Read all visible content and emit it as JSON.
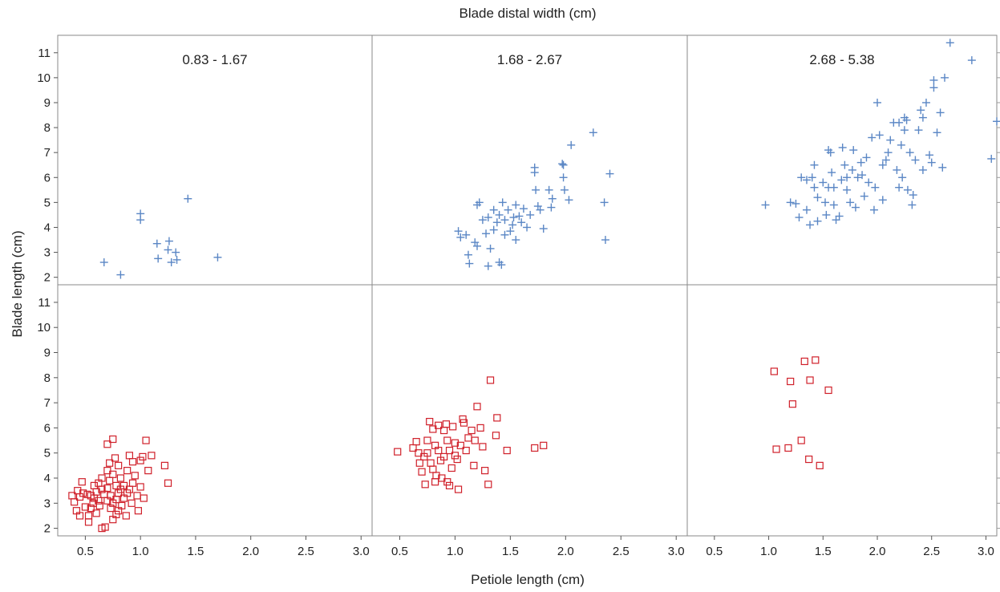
{
  "chart_data": {
    "type": "scatter",
    "title": "Blade distal width (cm)",
    "xlabel": "Petiole length (cm)",
    "ylabel": "Blade length (cm)",
    "xlim": [
      0.25,
      3.1
    ],
    "ylim": [
      1.7,
      11.7
    ],
    "x_ticks": [
      0.5,
      1.0,
      1.5,
      2.0,
      2.5,
      3.0
    ],
    "x_tick_labels": [
      "0.5",
      "1.0",
      "1.5",
      "2.0",
      "2.5",
      "3.0"
    ],
    "y_ticks": [
      2,
      3,
      4,
      5,
      6,
      7,
      8,
      9,
      10,
      11
    ],
    "y_tick_labels": [
      "2",
      "3",
      "4",
      "5",
      "6",
      "7",
      "8",
      "9",
      "10",
      "11"
    ],
    "grid": false,
    "columns": [
      "0.83 - 1.67",
      "1.68 - 2.67",
      "2.68 - 5.38"
    ],
    "series_styles": [
      {
        "marker": "plus",
        "color": "#5b87c5"
      },
      {
        "marker": "square",
        "color": "#d0202a"
      }
    ],
    "panels": [
      {
        "row": 0,
        "col": 0,
        "marker": "plus",
        "points": [
          [
            0.67,
            2.6
          ],
          [
            0.82,
            2.1
          ],
          [
            1.0,
            4.55
          ],
          [
            1.0,
            4.3
          ],
          [
            1.15,
            3.35
          ],
          [
            1.16,
            2.75
          ],
          [
            1.26,
            3.45
          ],
          [
            1.25,
            3.1
          ],
          [
            1.28,
            2.6
          ],
          [
            1.32,
            3.0
          ],
          [
            1.33,
            2.7
          ],
          [
            1.43,
            5.15
          ],
          [
            1.7,
            2.8
          ]
        ]
      },
      {
        "row": 0,
        "col": 1,
        "marker": "plus",
        "points": [
          [
            1.03,
            3.85
          ],
          [
            1.05,
            3.6
          ],
          [
            1.1,
            3.7
          ],
          [
            1.12,
            2.9
          ],
          [
            1.13,
            2.55
          ],
          [
            1.18,
            3.4
          ],
          [
            1.2,
            4.9
          ],
          [
            1.22,
            5.0
          ],
          [
            1.2,
            3.25
          ],
          [
            1.25,
            4.3
          ],
          [
            1.28,
            3.75
          ],
          [
            1.3,
            4.4
          ],
          [
            1.3,
            2.45
          ],
          [
            1.32,
            3.15
          ],
          [
            1.35,
            4.7
          ],
          [
            1.35,
            3.9
          ],
          [
            1.38,
            4.2
          ],
          [
            1.4,
            4.5
          ],
          [
            1.4,
            2.6
          ],
          [
            1.42,
            2.5
          ],
          [
            1.43,
            5.0
          ],
          [
            1.45,
            4.3
          ],
          [
            1.45,
            3.7
          ],
          [
            1.48,
            4.7
          ],
          [
            1.5,
            3.85
          ],
          [
            1.52,
            4.1
          ],
          [
            1.53,
            4.4
          ],
          [
            1.55,
            4.9
          ],
          [
            1.55,
            3.5
          ],
          [
            1.58,
            4.45
          ],
          [
            1.6,
            4.2
          ],
          [
            1.62,
            4.75
          ],
          [
            1.65,
            4.0
          ],
          [
            1.68,
            4.5
          ],
          [
            1.72,
            6.4
          ],
          [
            1.72,
            6.2
          ],
          [
            1.73,
            5.5
          ],
          [
            1.75,
            4.85
          ],
          [
            1.77,
            4.7
          ],
          [
            1.8,
            3.95
          ],
          [
            1.85,
            5.5
          ],
          [
            1.87,
            4.8
          ],
          [
            1.88,
            5.15
          ],
          [
            1.97,
            6.55
          ],
          [
            1.98,
            6.5
          ],
          [
            1.98,
            6.0
          ],
          [
            1.99,
            5.5
          ],
          [
            2.03,
            5.1
          ],
          [
            2.05,
            7.3
          ],
          [
            2.25,
            7.8
          ],
          [
            2.35,
            5.0
          ],
          [
            2.36,
            3.5
          ],
          [
            2.4,
            6.15
          ]
        ]
      },
      {
        "row": 0,
        "col": 2,
        "marker": "plus",
        "points": [
          [
            0.97,
            4.9
          ],
          [
            1.2,
            5.0
          ],
          [
            1.25,
            4.95
          ],
          [
            1.28,
            4.4
          ],
          [
            1.3,
            6.0
          ],
          [
            1.35,
            5.9
          ],
          [
            1.35,
            4.7
          ],
          [
            1.38,
            4.1
          ],
          [
            1.4,
            6.0
          ],
          [
            1.42,
            6.5
          ],
          [
            1.42,
            5.6
          ],
          [
            1.45,
            5.2
          ],
          [
            1.45,
            4.25
          ],
          [
            1.5,
            5.8
          ],
          [
            1.52,
            5.0
          ],
          [
            1.53,
            4.5
          ],
          [
            1.55,
            7.1
          ],
          [
            1.55,
            5.6
          ],
          [
            1.57,
            7.0
          ],
          [
            1.58,
            6.2
          ],
          [
            1.6,
            5.6
          ],
          [
            1.6,
            4.9
          ],
          [
            1.62,
            4.3
          ],
          [
            1.65,
            4.45
          ],
          [
            1.67,
            5.9
          ],
          [
            1.68,
            7.2
          ],
          [
            1.7,
            6.5
          ],
          [
            1.72,
            6.0
          ],
          [
            1.72,
            5.5
          ],
          [
            1.75,
            5.0
          ],
          [
            1.77,
            6.3
          ],
          [
            1.78,
            7.1
          ],
          [
            1.8,
            4.8
          ],
          [
            1.82,
            6.0
          ],
          [
            1.85,
            6.6
          ],
          [
            1.86,
            6.1
          ],
          [
            1.88,
            5.25
          ],
          [
            1.9,
            6.8
          ],
          [
            1.92,
            5.8
          ],
          [
            1.95,
            7.6
          ],
          [
            1.97,
            4.7
          ],
          [
            1.98,
            5.6
          ],
          [
            2.0,
            9.0
          ],
          [
            2.02,
            7.7
          ],
          [
            2.05,
            6.5
          ],
          [
            2.05,
            5.1
          ],
          [
            2.08,
            6.7
          ],
          [
            2.1,
            7.0
          ],
          [
            2.12,
            7.5
          ],
          [
            2.15,
            8.2
          ],
          [
            2.18,
            6.3
          ],
          [
            2.2,
            8.2
          ],
          [
            2.2,
            5.6
          ],
          [
            2.22,
            7.3
          ],
          [
            2.23,
            6.0
          ],
          [
            2.25,
            8.4
          ],
          [
            2.25,
            7.9
          ],
          [
            2.27,
            8.3
          ],
          [
            2.28,
            5.5
          ],
          [
            2.3,
            7.0
          ],
          [
            2.32,
            4.9
          ],
          [
            2.33,
            5.3
          ],
          [
            2.35,
            6.7
          ],
          [
            2.38,
            7.9
          ],
          [
            2.4,
            8.7
          ],
          [
            2.42,
            8.4
          ],
          [
            2.42,
            6.3
          ],
          [
            2.45,
            9.0
          ],
          [
            2.48,
            6.9
          ],
          [
            2.5,
            6.6
          ],
          [
            2.52,
            9.9
          ],
          [
            2.52,
            9.6
          ],
          [
            2.55,
            7.8
          ],
          [
            2.58,
            8.6
          ],
          [
            2.6,
            6.4
          ],
          [
            2.62,
            10.0
          ],
          [
            2.67,
            11.4
          ],
          [
            2.87,
            10.7
          ],
          [
            3.05,
            6.75
          ],
          [
            3.1,
            8.25
          ]
        ]
      },
      {
        "row": 1,
        "col": 0,
        "marker": "square",
        "points": [
          [
            0.38,
            3.3
          ],
          [
            0.4,
            3.05
          ],
          [
            0.42,
            2.7
          ],
          [
            0.43,
            3.5
          ],
          [
            0.45,
            3.25
          ],
          [
            0.45,
            2.5
          ],
          [
            0.47,
            3.85
          ],
          [
            0.48,
            3.4
          ],
          [
            0.5,
            2.85
          ],
          [
            0.52,
            3.35
          ],
          [
            0.53,
            2.5
          ],
          [
            0.53,
            2.25
          ],
          [
            0.55,
            3.3
          ],
          [
            0.55,
            2.8
          ],
          [
            0.57,
            3.0
          ],
          [
            0.58,
            3.7
          ],
          [
            0.58,
            3.2
          ],
          [
            0.6,
            3.45
          ],
          [
            0.6,
            2.6
          ],
          [
            0.62,
            3.8
          ],
          [
            0.62,
            3.1
          ],
          [
            0.63,
            2.9
          ],
          [
            0.65,
            4.0
          ],
          [
            0.65,
            3.55
          ],
          [
            0.65,
            2.0
          ],
          [
            0.67,
            3.35
          ],
          [
            0.68,
            2.05
          ],
          [
            0.7,
            4.3
          ],
          [
            0.7,
            3.6
          ],
          [
            0.7,
            3.1
          ],
          [
            0.7,
            5.35
          ],
          [
            0.72,
            4.6
          ],
          [
            0.72,
            3.9
          ],
          [
            0.73,
            3.3
          ],
          [
            0.73,
            2.8
          ],
          [
            0.75,
            5.55
          ],
          [
            0.75,
            4.15
          ],
          [
            0.75,
            3.0
          ],
          [
            0.75,
            2.35
          ],
          [
            0.77,
            4.8
          ],
          [
            0.78,
            3.7
          ],
          [
            0.78,
            3.15
          ],
          [
            0.78,
            2.55
          ],
          [
            0.8,
            4.5
          ],
          [
            0.8,
            3.4
          ],
          [
            0.8,
            2.7
          ],
          [
            0.82,
            4.0
          ],
          [
            0.82,
            3.55
          ],
          [
            0.83,
            2.9
          ],
          [
            0.85,
            3.7
          ],
          [
            0.85,
            3.2
          ],
          [
            0.87,
            2.5
          ],
          [
            0.88,
            4.3
          ],
          [
            0.88,
            3.4
          ],
          [
            0.9,
            4.9
          ],
          [
            0.9,
            3.55
          ],
          [
            0.92,
            3.0
          ],
          [
            0.93,
            4.65
          ],
          [
            0.93,
            3.8
          ],
          [
            0.95,
            4.1
          ],
          [
            0.97,
            3.3
          ],
          [
            0.98,
            2.7
          ],
          [
            1.0,
            4.7
          ],
          [
            1.0,
            3.65
          ],
          [
            1.02,
            4.85
          ],
          [
            1.03,
            3.2
          ],
          [
            1.05,
            5.5
          ],
          [
            1.07,
            4.3
          ],
          [
            1.1,
            4.9
          ],
          [
            1.22,
            4.5
          ],
          [
            1.25,
            3.8
          ]
        ]
      },
      {
        "row": 1,
        "col": 1,
        "marker": "square",
        "points": [
          [
            0.48,
            5.05
          ],
          [
            0.62,
            5.2
          ],
          [
            0.65,
            5.45
          ],
          [
            0.67,
            5.0
          ],
          [
            0.68,
            4.6
          ],
          [
            0.7,
            4.25
          ],
          [
            0.72,
            4.85
          ],
          [
            0.73,
            3.75
          ],
          [
            0.75,
            5.5
          ],
          [
            0.75,
            5.0
          ],
          [
            0.77,
            6.25
          ],
          [
            0.78,
            4.6
          ],
          [
            0.8,
            5.95
          ],
          [
            0.8,
            4.35
          ],
          [
            0.82,
            5.3
          ],
          [
            0.82,
            3.85
          ],
          [
            0.83,
            4.1
          ],
          [
            0.85,
            6.1
          ],
          [
            0.85,
            5.1
          ],
          [
            0.87,
            4.7
          ],
          [
            0.88,
            4.0
          ],
          [
            0.9,
            5.9
          ],
          [
            0.9,
            4.85
          ],
          [
            0.92,
            6.15
          ],
          [
            0.93,
            5.5
          ],
          [
            0.93,
            3.85
          ],
          [
            0.95,
            5.1
          ],
          [
            0.95,
            3.7
          ],
          [
            0.97,
            4.4
          ],
          [
            0.98,
            6.05
          ],
          [
            1.0,
            5.4
          ],
          [
            1.0,
            4.9
          ],
          [
            1.02,
            4.75
          ],
          [
            1.03,
            3.55
          ],
          [
            1.05,
            5.3
          ],
          [
            1.07,
            6.35
          ],
          [
            1.08,
            6.2
          ],
          [
            1.1,
            5.1
          ],
          [
            1.12,
            5.6
          ],
          [
            1.15,
            5.9
          ],
          [
            1.17,
            4.5
          ],
          [
            1.18,
            5.5
          ],
          [
            1.2,
            6.85
          ],
          [
            1.23,
            6.0
          ],
          [
            1.25,
            5.25
          ],
          [
            1.27,
            4.3
          ],
          [
            1.3,
            3.75
          ],
          [
            1.32,
            7.9
          ],
          [
            1.37,
            5.7
          ],
          [
            1.38,
            6.4
          ],
          [
            1.47,
            5.1
          ],
          [
            1.72,
            5.2
          ],
          [
            1.8,
            5.3
          ]
        ]
      },
      {
        "row": 1,
        "col": 2,
        "marker": "square",
        "points": [
          [
            1.05,
            8.25
          ],
          [
            1.07,
            5.15
          ],
          [
            1.18,
            5.2
          ],
          [
            1.2,
            7.85
          ],
          [
            1.22,
            6.95
          ],
          [
            1.3,
            5.5
          ],
          [
            1.33,
            8.65
          ],
          [
            1.37,
            4.75
          ],
          [
            1.38,
            7.9
          ],
          [
            1.43,
            8.7
          ],
          [
            1.47,
            4.5
          ],
          [
            1.55,
            7.5
          ]
        ]
      }
    ]
  }
}
